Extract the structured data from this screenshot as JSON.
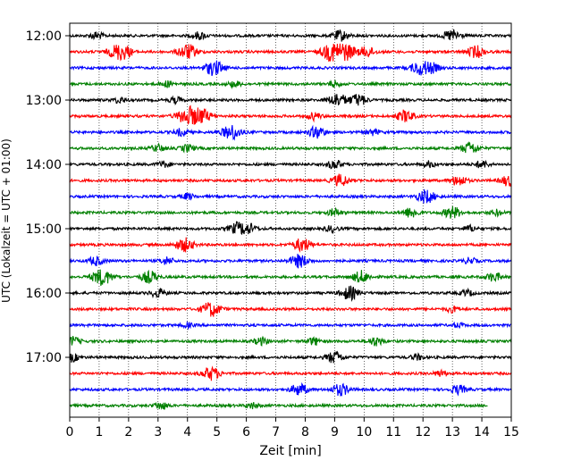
{
  "chart_data": {
    "type": "line",
    "title": "",
    "xlabel": "Zeit  [min]",
    "ylabel": "UTC (Lokalzeit = UTC + 01:00)",
    "xlim": [
      0,
      15
    ],
    "x_ticks": [
      "0",
      "1",
      "2",
      "3",
      "4",
      "5",
      "6",
      "7",
      "8",
      "9",
      "10",
      "11",
      "12",
      "13",
      "14",
      "15"
    ],
    "y_ticks": [
      "12:00",
      "13:00",
      "14:00",
      "15:00",
      "16:00",
      "17:00"
    ],
    "grid": "vertical dotted at each minute",
    "legend": "none",
    "trace_colors": [
      "#000000",
      "#ff0000",
      "#0000ff",
      "#008000"
    ],
    "traces": [
      {
        "start": "12:00",
        "color": "#000000",
        "end_min": 15,
        "events": [
          [
            0.9,
            0.5
          ],
          [
            4.4,
            0.5
          ],
          [
            9.2,
            0.7
          ],
          [
            13.0,
            0.8
          ]
        ]
      },
      {
        "start": "12:15",
        "color": "#ff0000",
        "end_min": 15,
        "events": [
          [
            1.6,
            0.9
          ],
          [
            1.9,
            0.6
          ],
          [
            4.0,
            1.0
          ],
          [
            8.9,
            1.2
          ],
          [
            9.4,
            1.0
          ],
          [
            10.1,
            0.7
          ],
          [
            13.8,
            0.8
          ]
        ]
      },
      {
        "start": "12:30",
        "color": "#0000ff",
        "end_min": 15,
        "events": [
          [
            4.9,
            1.0
          ],
          [
            11.9,
            0.9
          ],
          [
            12.3,
            0.6
          ]
        ]
      },
      {
        "start": "12:45",
        "color": "#008000",
        "end_min": 15,
        "events": [
          [
            3.3,
            0.4
          ],
          [
            5.6,
            0.4
          ],
          [
            9.0,
            0.4
          ]
        ]
      },
      {
        "start": "13:00",
        "color": "#000000",
        "end_min": 15,
        "events": [
          [
            1.7,
            0.4
          ],
          [
            3.6,
            0.4
          ],
          [
            9.1,
            0.9
          ],
          [
            9.8,
            0.8
          ]
        ]
      },
      {
        "start": "13:15",
        "color": "#ff0000",
        "end_min": 15,
        "events": [
          [
            4.0,
            1.2
          ],
          [
            4.5,
            0.9
          ],
          [
            8.3,
            0.5
          ],
          [
            11.4,
            0.8
          ]
        ]
      },
      {
        "start": "13:30",
        "color": "#0000ff",
        "end_min": 15,
        "events": [
          [
            3.8,
            0.5
          ],
          [
            5.5,
            1.0
          ],
          [
            8.4,
            0.8
          ],
          [
            10.3,
            0.4
          ]
        ]
      },
      {
        "start": "13:45",
        "color": "#008000",
        "end_min": 15,
        "events": [
          [
            3.0,
            0.5
          ],
          [
            4.0,
            0.5
          ],
          [
            13.6,
            0.8
          ]
        ]
      },
      {
        "start": "14:00",
        "color": "#000000",
        "end_min": 15,
        "events": [
          [
            3.2,
            0.4
          ],
          [
            9.0,
            0.6
          ],
          [
            12.2,
            0.4
          ],
          [
            14.0,
            0.5
          ]
        ]
      },
      {
        "start": "14:15",
        "color": "#ff0000",
        "end_min": 15,
        "events": [
          [
            9.2,
            0.8
          ],
          [
            13.2,
            0.7
          ],
          [
            14.9,
            0.7
          ]
        ]
      },
      {
        "start": "14:30",
        "color": "#0000ff",
        "end_min": 15,
        "events": [
          [
            4.0,
            0.4
          ],
          [
            12.1,
            0.9
          ]
        ]
      },
      {
        "start": "14:45",
        "color": "#008000",
        "end_min": 15,
        "events": [
          [
            9.0,
            0.5
          ],
          [
            11.6,
            0.7
          ],
          [
            13.0,
            0.8
          ],
          [
            14.5,
            0.4
          ]
        ]
      },
      {
        "start": "15:00",
        "color": "#000000",
        "end_min": 15,
        "events": [
          [
            5.7,
            0.8
          ],
          [
            6.1,
            0.6
          ],
          [
            8.9,
            0.4
          ],
          [
            13.6,
            0.4
          ]
        ]
      },
      {
        "start": "15:15",
        "color": "#ff0000",
        "end_min": 15,
        "events": [
          [
            3.9,
            0.9
          ],
          [
            7.9,
            0.9
          ]
        ]
      },
      {
        "start": "15:30",
        "color": "#0000ff",
        "end_min": 15,
        "events": [
          [
            0.9,
            0.6
          ],
          [
            3.3,
            0.5
          ],
          [
            7.8,
            0.9
          ],
          [
            13.6,
            0.4
          ]
        ]
      },
      {
        "start": "15:45",
        "color": "#008000",
        "end_min": 15,
        "events": [
          [
            1.1,
            1.1
          ],
          [
            2.7,
            0.8
          ],
          [
            9.9,
            0.8
          ],
          [
            14.4,
            0.6
          ]
        ]
      },
      {
        "start": "16:00",
        "color": "#000000",
        "end_min": 15,
        "events": [
          [
            3.0,
            0.6
          ],
          [
            9.5,
            0.9
          ],
          [
            13.5,
            0.4
          ]
        ]
      },
      {
        "start": "16:15",
        "color": "#ff0000",
        "end_min": 15,
        "events": [
          [
            4.8,
            1.0
          ],
          [
            13.0,
            0.4
          ]
        ]
      },
      {
        "start": "16:30",
        "color": "#0000ff",
        "end_min": 15,
        "events": [
          [
            4.0,
            0.3
          ],
          [
            13.2,
            0.3
          ]
        ]
      },
      {
        "start": "16:45",
        "color": "#008000",
        "end_min": 15,
        "events": [
          [
            0.1,
            0.6
          ],
          [
            6.5,
            0.5
          ],
          [
            8.3,
            0.5
          ],
          [
            10.4,
            0.6
          ]
        ]
      },
      {
        "start": "17:00",
        "color": "#000000",
        "end_min": 15,
        "events": [
          [
            0.05,
            0.6
          ],
          [
            9.0,
            0.8
          ],
          [
            11.8,
            0.4
          ]
        ]
      },
      {
        "start": "17:15",
        "color": "#ff0000",
        "end_min": 15,
        "events": [
          [
            4.8,
            0.9
          ],
          [
            12.6,
            0.4
          ]
        ]
      },
      {
        "start": "17:30",
        "color": "#0000ff",
        "end_min": 15,
        "events": [
          [
            7.8,
            0.8
          ],
          [
            9.2,
            0.8
          ],
          [
            13.2,
            0.6
          ]
        ]
      },
      {
        "start": "17:45",
        "color": "#008000",
        "end_min": 14.2,
        "events": [
          [
            3.1,
            0.5
          ],
          [
            6.2,
            0.4
          ]
        ]
      }
    ]
  }
}
